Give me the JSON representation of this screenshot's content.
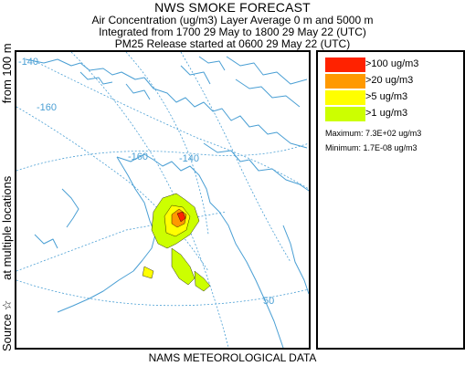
{
  "header": {
    "title": "NWS SMOKE FORECAST",
    "line2": "Air Concentration (ug/m3) Layer Average    0 m and  5000 m",
    "line3": "Integrated from 1700 29 May to 1800 29 May 22 (UTC)",
    "line4": "PM25 Release started at 0600 29 May 22 (UTC)"
  },
  "side_label": {
    "source": "Source ☆",
    "locations": "at multiple locations",
    "from": "from   100 m"
  },
  "footer": {
    "text": "NAMS METEOROLOGICAL DATA"
  },
  "map": {
    "coast_color": "#4a9fd4",
    "graticule_color": "#4a9fd4",
    "graticule_labels": [
      "-140",
      "-160",
      "-160",
      "-140",
      "50"
    ]
  },
  "legend": {
    "items": [
      {
        "label": ">100 ug/m3",
        "color": "#ff2200"
      },
      {
        "label": ">20 ug/m3",
        "color": "#ff9900"
      },
      {
        "label": ">5 ug/m3",
        "color": "#ffff00"
      },
      {
        "label": ">1 ug/m3",
        "color": "#ccff00"
      }
    ],
    "maximum": "Maximum: 7.3E+02 ug/m3",
    "minimum": "Minimum: 1.7E-08 ug/m3"
  }
}
